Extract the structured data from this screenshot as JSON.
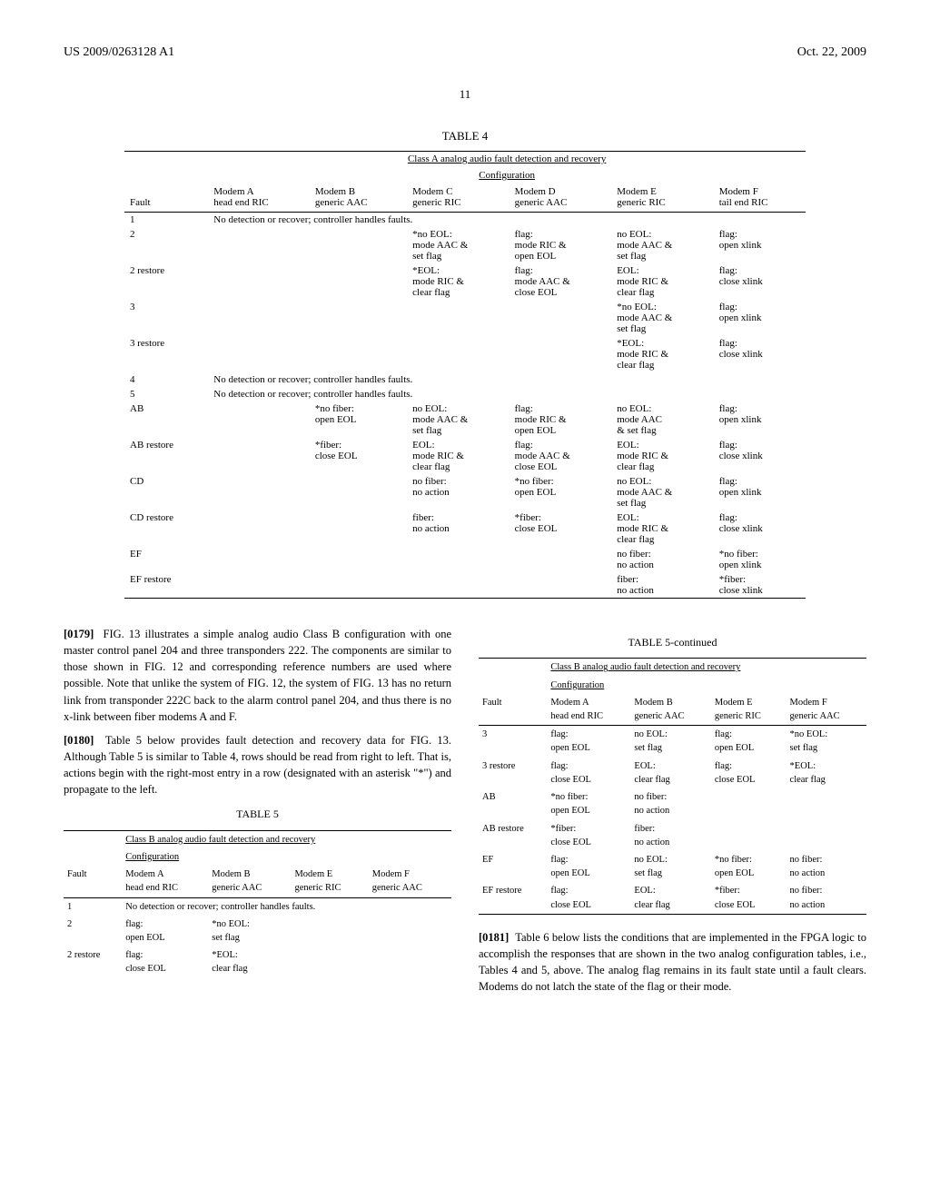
{
  "header": {
    "left": "US 2009/0263128 A1",
    "right": "Oct. 22, 2009"
  },
  "page_number": "11",
  "table4": {
    "label": "TABLE 4",
    "title": "Class A analog audio fault detection and recovery",
    "config_label": "Configuration",
    "fault_label": "Fault",
    "columns": [
      {
        "name": "Modem A",
        "sub": "head end RIC"
      },
      {
        "name": "Modem B",
        "sub": "generic AAC"
      },
      {
        "name": "Modem C",
        "sub": "generic RIC"
      },
      {
        "name": "Modem D",
        "sub": "generic AAC"
      },
      {
        "name": "Modem E",
        "sub": "generic RIC"
      },
      {
        "name": "Modem F",
        "sub": "tail end RIC"
      }
    ],
    "rows": [
      {
        "fault": "1",
        "span": "No detection or recover; controller handles faults."
      },
      {
        "fault": "2",
        "cells": [
          "",
          "",
          "*no EOL:\nmode AAC &\nset flag",
          "flag:\nmode RIC &\nopen EOL",
          "no EOL:\nmode AAC &\nset flag",
          "flag:\nopen xlink"
        ]
      },
      {
        "fault": "2 restore",
        "cells": [
          "",
          "",
          "*EOL:\nmode RIC &\nclear flag",
          "flag:\nmode AAC &\nclose EOL",
          "EOL:\nmode RIC &\nclear flag",
          "flag:\nclose xlink"
        ]
      },
      {
        "fault": "3",
        "cells": [
          "",
          "",
          "",
          "",
          "*no EOL:\nmode AAC &\nset flag",
          "flag:\nopen xlink"
        ]
      },
      {
        "fault": "3 restore",
        "cells": [
          "",
          "",
          "",
          "",
          "*EOL:\nmode RIC &\nclear flag",
          "flag:\nclose xlink"
        ]
      },
      {
        "fault": "4",
        "span": "No detection or recover; controller handles faults."
      },
      {
        "fault": "5",
        "span": "No detection or recover; controller handles faults."
      },
      {
        "fault": "AB",
        "cells": [
          "",
          "*no fiber:\nopen EOL",
          "no EOL:\nmode AAC &\nset flag",
          "flag:\nmode RIC &\nopen EOL",
          "no EOL:\nmode AAC\n& set flag",
          "flag:\nopen xlink"
        ]
      },
      {
        "fault": "AB restore",
        "cells": [
          "",
          "*fiber:\nclose EOL",
          "EOL:\nmode RIC &\nclear flag",
          "flag:\nmode AAC &\nclose EOL",
          "EOL:\nmode RIC &\nclear flag",
          "flag:\nclose xlink"
        ]
      },
      {
        "fault": "CD",
        "cells": [
          "",
          "",
          "no fiber:\nno action",
          "*no fiber:\nopen EOL",
          "no EOL:\nmode AAC &\nset flag",
          "flag:\nopen xlink"
        ]
      },
      {
        "fault": "CD restore",
        "cells": [
          "",
          "",
          "fiber:\nno action",
          "*fiber:\nclose EOL",
          "EOL:\nmode RIC &\nclear flag",
          "flag:\nclose xlink"
        ]
      },
      {
        "fault": "EF",
        "cells": [
          "",
          "",
          "",
          "",
          "no fiber:\nno action",
          "*no fiber:\nopen xlink"
        ]
      },
      {
        "fault": "EF restore",
        "cells": [
          "",
          "",
          "",
          "",
          "fiber:\nno action",
          "*fiber:\nclose xlink"
        ]
      }
    ]
  },
  "paragraphs": {
    "p0179": {
      "num": "[0179]",
      "text": "FIG. 13 illustrates a simple analog audio Class B configuration with one master control panel 204 and three transponders 222. The components are similar to those shown in FIG. 12 and corresponding reference numbers are used where possible. Note that unlike the system of FIG. 12, the system of FIG. 13 has no return link from transponder 222C back to the alarm control panel 204, and thus there is no x-link between fiber modems A and F."
    },
    "p0180": {
      "num": "[0180]",
      "text": "Table 5 below provides fault detection and recovery data for FIG. 13. Although Table 5 is similar to Table 4, rows should be read from right to left. That is, actions begin with the right-most entry in a row (designated with an asterisk \"*\") and propagate to the left."
    },
    "p0181": {
      "num": "[0181]",
      "text": "Table 6 below lists the conditions that are implemented in the FPGA logic to accomplish the responses that are shown in the two analog configuration tables, i.e., Tables 4 and 5, above. The analog flag remains in its fault state until a fault clears. Modems do not latch the state of the flag or their mode."
    }
  },
  "table5a": {
    "label": "TABLE 5",
    "title": "Class B analog audio fault detection and recovery",
    "config_label": "Configuration",
    "fault_label": "Fault",
    "columns": [
      {
        "name": "Modem A",
        "sub": "head end RIC"
      },
      {
        "name": "Modem B",
        "sub": "generic AAC"
      },
      {
        "name": "Modem E",
        "sub": "generic RIC"
      },
      {
        "name": "Modem F",
        "sub": "generic AAC"
      }
    ],
    "rows": [
      {
        "fault": "1",
        "span": "No detection or recover; controller handles faults."
      },
      {
        "fault": "2",
        "cells": [
          "flag:\nopen EOL",
          "*no EOL:\nset flag",
          "",
          ""
        ]
      },
      {
        "fault": "2 restore",
        "cells": [
          "flag:\nclose EOL",
          "*EOL:\nclear flag",
          "",
          ""
        ]
      }
    ]
  },
  "table5b": {
    "label": "TABLE 5-continued",
    "title": "Class B analog audio fault detection and recovery",
    "config_label": "Configuration",
    "fault_label": "Fault",
    "columns": [
      {
        "name": "Modem A",
        "sub": "head end RIC"
      },
      {
        "name": "Modem B",
        "sub": "generic AAC"
      },
      {
        "name": "Modem E",
        "sub": "generic RIC"
      },
      {
        "name": "Modem F",
        "sub": "generic AAC"
      }
    ],
    "rows": [
      {
        "fault": "3",
        "cells": [
          "flag:\nopen EOL",
          "no EOL:\nset flag",
          "flag:\nopen EOL",
          "*no EOL:\nset flag"
        ]
      },
      {
        "fault": "3 restore",
        "cells": [
          "flag:\nclose EOL",
          "EOL:\nclear flag",
          "flag:\nclose EOL",
          "*EOL:\nclear flag"
        ]
      },
      {
        "fault": "AB",
        "cells": [
          "*no fiber:\nopen EOL",
          "no fiber:\nno action",
          "",
          ""
        ]
      },
      {
        "fault": "AB restore",
        "cells": [
          "*fiber:\nclose EOL",
          "fiber:\nno action",
          "",
          ""
        ]
      },
      {
        "fault": "EF",
        "cells": [
          "flag:\nopen EOL",
          "no EOL:\nset flag",
          "*no fiber:\nopen EOL",
          "no fiber:\nno action"
        ]
      },
      {
        "fault": "EF restore",
        "cells": [
          "flag:\nclose EOL",
          "EOL:\nclear flag",
          "*fiber:\nclose EOL",
          "no fiber:\nno action"
        ]
      }
    ]
  }
}
